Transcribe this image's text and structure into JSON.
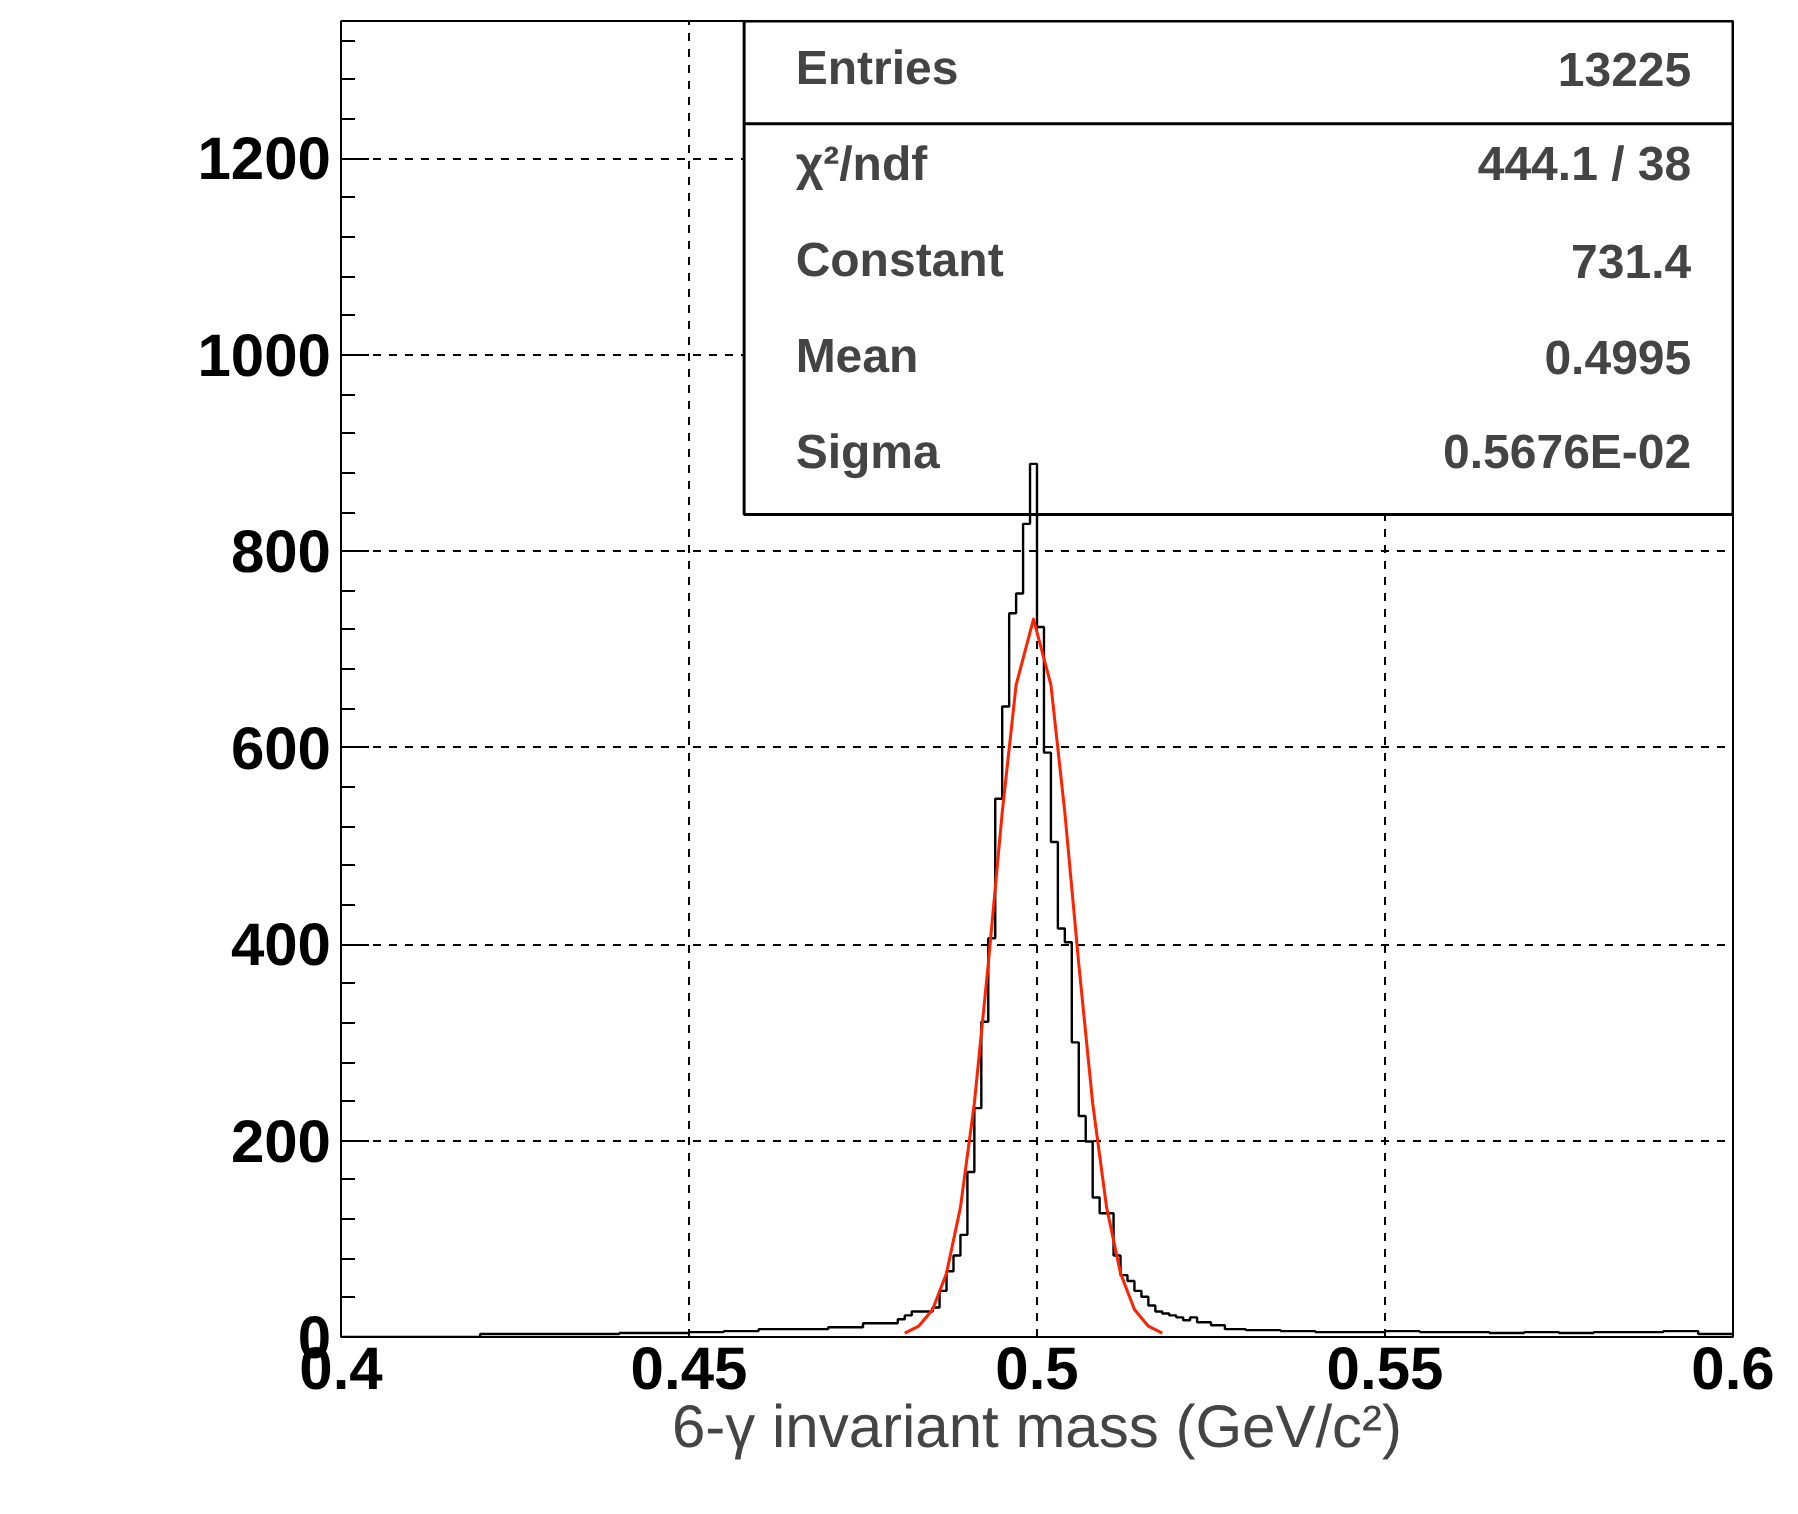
{
  "chart_data": {
    "type": "histogram",
    "xlabel": "6-γ invariant mass (GeV/c²)",
    "bins": [
      0.4,
      0.42,
      0.425,
      0.43,
      0.435,
      0.44,
      0.445,
      0.45,
      0.455,
      0.46,
      0.465,
      0.47,
      0.475,
      0.48,
      0.481,
      0.482,
      0.483,
      0.484,
      0.485,
      0.486,
      0.487,
      0.488,
      0.489,
      0.49,
      0.491,
      0.492,
      0.493,
      0.494,
      0.495,
      0.496,
      0.497,
      0.498,
      0.499,
      0.5,
      0.501,
      0.502,
      0.503,
      0.504,
      0.505,
      0.506,
      0.507,
      0.508,
      0.509,
      0.51,
      0.511,
      0.512,
      0.513,
      0.514,
      0.515,
      0.516,
      0.517,
      0.518,
      0.519,
      0.52,
      0.521,
      0.522,
      0.523,
      0.524,
      0.525,
      0.526,
      0.527,
      0.53,
      0.535,
      0.54,
      0.545,
      0.55,
      0.555,
      0.56,
      0.565,
      0.57,
      0.575,
      0.58,
      0.585,
      0.59,
      0.595,
      0.6
    ],
    "values": [
      0,
      3,
      3,
      3,
      3,
      4,
      4,
      5,
      6,
      8,
      8,
      10,
      14,
      18,
      22,
      26,
      26,
      26,
      30,
      47,
      67,
      83,
      104,
      168,
      233,
      321,
      406,
      548,
      642,
      737,
      757,
      828,
      889,
      723,
      595,
      504,
      416,
      402,
      300,
      225,
      199,
      142,
      126,
      126,
      83,
      63,
      57,
      47,
      41,
      32,
      26,
      24,
      22,
      20,
      17,
      20,
      15,
      15,
      12,
      12,
      8,
      7,
      6,
      5,
      5,
      6,
      5,
      5,
      4,
      5,
      4,
      5,
      5,
      6,
      3
    ],
    "color": "#000000",
    "series": [
      {
        "type": "line",
        "color": "#ff2200",
        "x": [
          0.481,
          0.483,
          0.485,
          0.487,
          0.489,
          0.491,
          0.493,
          0.495,
          0.497,
          0.4995,
          0.502,
          0.504,
          0.506,
          0.508,
          0.51,
          0.512,
          0.514,
          0.516,
          0.518
        ],
        "values": [
          4,
          11,
          28,
          65,
          132,
          238,
          380,
          534,
          664,
          731,
          664,
          534,
          380,
          238,
          132,
          65,
          28,
          11,
          4
        ]
      }
    ],
    "xlim": [
      0.4,
      0.6
    ],
    "xticks": [
      0.4,
      0.45,
      0.5,
      0.55,
      0.6
    ],
    "ylim": [
      0,
      1340
    ],
    "yticks": [
      0,
      200,
      400,
      600,
      800,
      1000,
      1200
    ],
    "grid": true,
    "annotations": [
      "Entries",
      "13225",
      "χ²/ndf",
      "444.1 / 38",
      "Constant",
      "731.4",
      "Mean",
      "0.4995",
      "Sigma",
      "0.5676E-02"
    ]
  }
}
